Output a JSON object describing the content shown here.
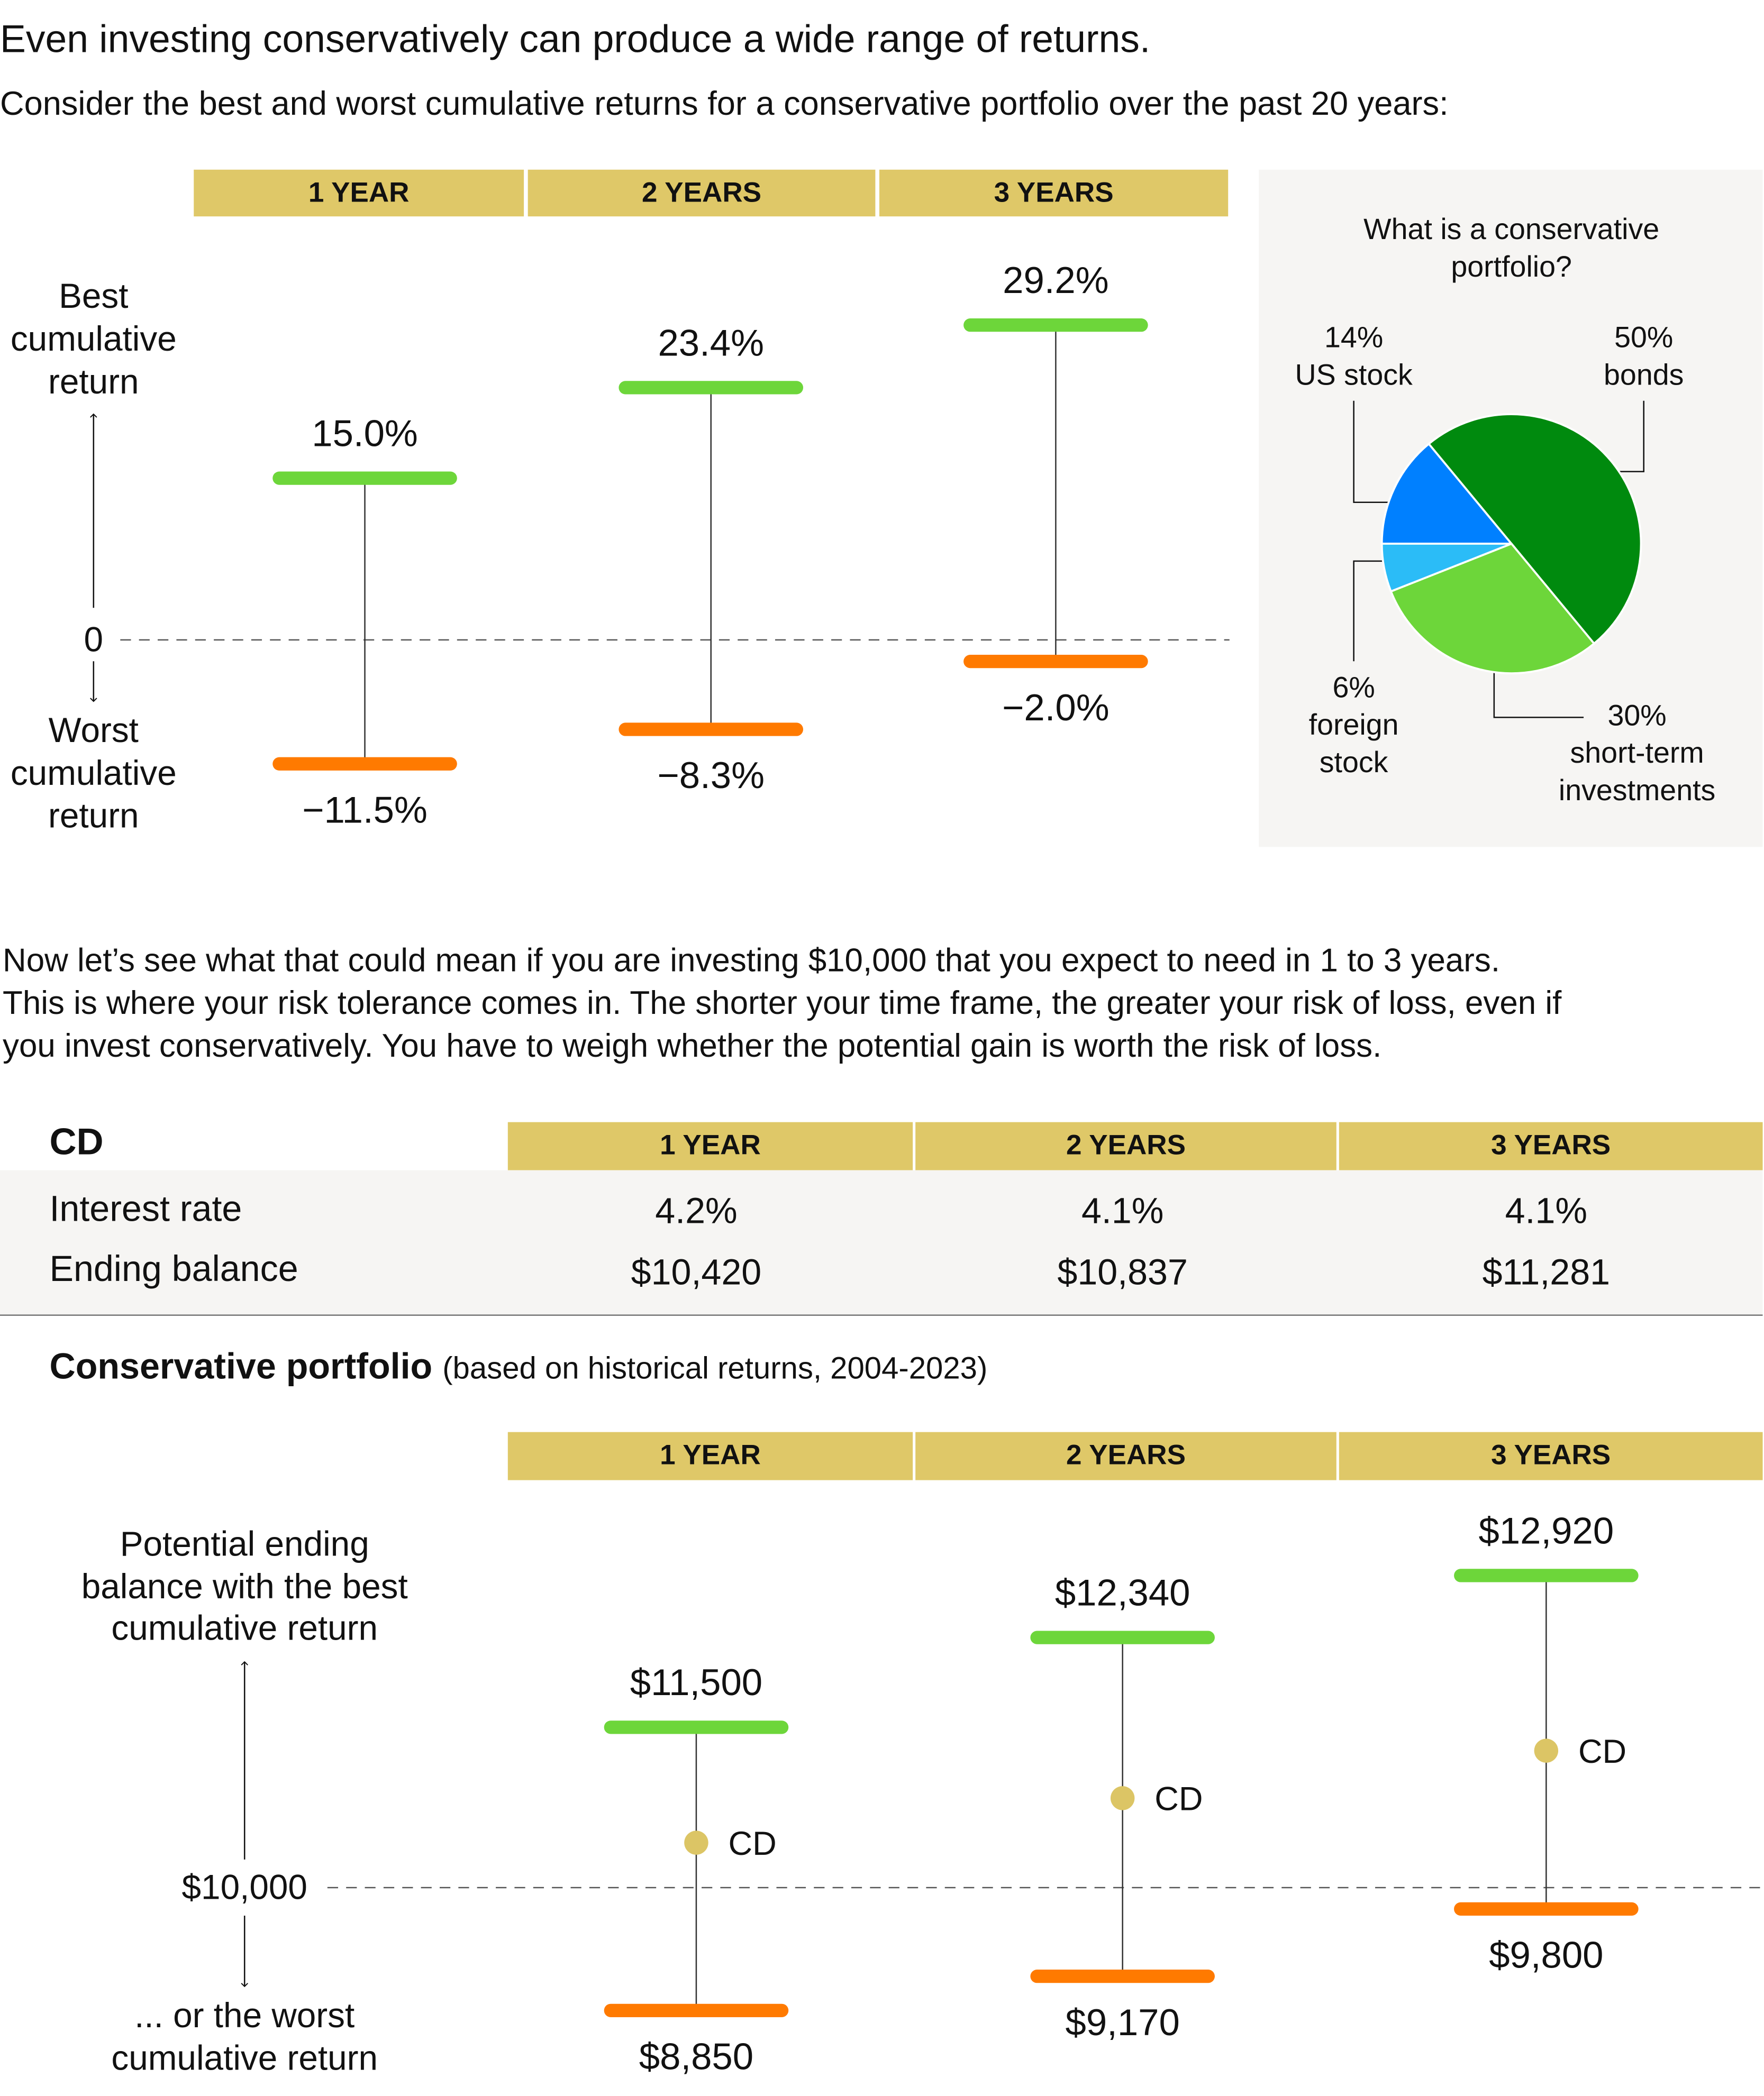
{
  "headline": "Even investing conservatively can produce a wide range of returns.",
  "intro": "Consider the best and worst cumulative returns for a conservative portfolio over the past 20 years:",
  "periods": [
    "1 YEAR",
    "2 YEARS",
    "3 YEARS"
  ],
  "colors": {
    "best": "#6dd63a",
    "worst": "#ff7a00",
    "header": "#dfc868",
    "cd_dot": "#dcc565",
    "panel": "#f6f5f3"
  },
  "top_axis": {
    "best_label": [
      "Best",
      "cumulative",
      "return"
    ],
    "zero_label": "0",
    "worst_label": [
      "Worst",
      "cumulative",
      "return"
    ]
  },
  "pie_panel": {
    "title": [
      "What is a conservative",
      "portfolio?"
    ]
  },
  "paragraph": [
    "Now let’s see what that could mean if you are investing $10,000 that you expect to need in 1 to 3 years.",
    "This is where your risk tolerance comes in. The shorter your time frame, the greater your risk of loss, even if",
    "you invest conservatively. You have to weigh whether the potential gain is worth the risk of loss."
  ],
  "cd_table": {
    "title": "CD",
    "rows": [
      {
        "label": "Interest rate",
        "values": [
          "4.2%",
          "4.1%",
          "4.1%"
        ]
      },
      {
        "label": "Ending balance",
        "values": [
          "$10,420",
          "$10,837",
          "$11,281"
        ]
      }
    ]
  },
  "portfolio_section": {
    "title": "Conservative portfolio",
    "subtitle": "(based on historical returns, 2004-2023)"
  },
  "bottom_axis": {
    "best_label": [
      "Potential ending",
      "balance with the best",
      "cumulative return"
    ],
    "zero_label": "$10,000",
    "worst_label": [
      "... or the worst",
      "cumulative return"
    ],
    "cd_label": "CD"
  },
  "chart_data": [
    {
      "type": "range",
      "categories": [
        "1 YEAR",
        "2 YEARS",
        "3 YEARS"
      ],
      "series": [
        {
          "name": "Best cumulative return",
          "values": [
            15.0,
            23.4,
            29.2
          ],
          "labels": [
            "15.0%",
            "23.4%",
            "29.2%"
          ]
        },
        {
          "name": "Worst cumulative return",
          "values": [
            -11.5,
            -8.3,
            -2.0
          ],
          "labels": [
            "−11.5%",
            "−8.3%",
            "−2.0%"
          ]
        }
      ],
      "baseline": 0
    },
    {
      "type": "pie",
      "title": "What is a conservative portfolio?",
      "slices": [
        {
          "label": [
            "14%",
            "US stock"
          ],
          "value": 14,
          "color": "#0080ff"
        },
        {
          "label": [
            "50%",
            "bonds"
          ],
          "value": 50,
          "color": "#008a0e"
        },
        {
          "label": [
            "30%",
            "short-term",
            "investments"
          ],
          "value": 30,
          "color": "#6dd63a"
        },
        {
          "label": [
            "6%",
            "foreign",
            "stock"
          ],
          "value": 6,
          "color": "#2bbcf7"
        }
      ]
    },
    {
      "type": "range",
      "categories": [
        "1 YEAR",
        "2 YEARS",
        "3 YEARS"
      ],
      "series": [
        {
          "name": "Potential ending balance with the best cumulative return",
          "values": [
            11500,
            12340,
            12920
          ],
          "labels": [
            "$11,500",
            "$12,340",
            "$12,920"
          ]
        },
        {
          "name": "... or the worst cumulative return",
          "values": [
            8850,
            9170,
            9800
          ],
          "labels": [
            "$8,850",
            "$9,170",
            "$9,800"
          ]
        },
        {
          "name": "CD",
          "values": [
            10420,
            10837,
            11281
          ]
        }
      ],
      "baseline": 10000
    }
  ]
}
